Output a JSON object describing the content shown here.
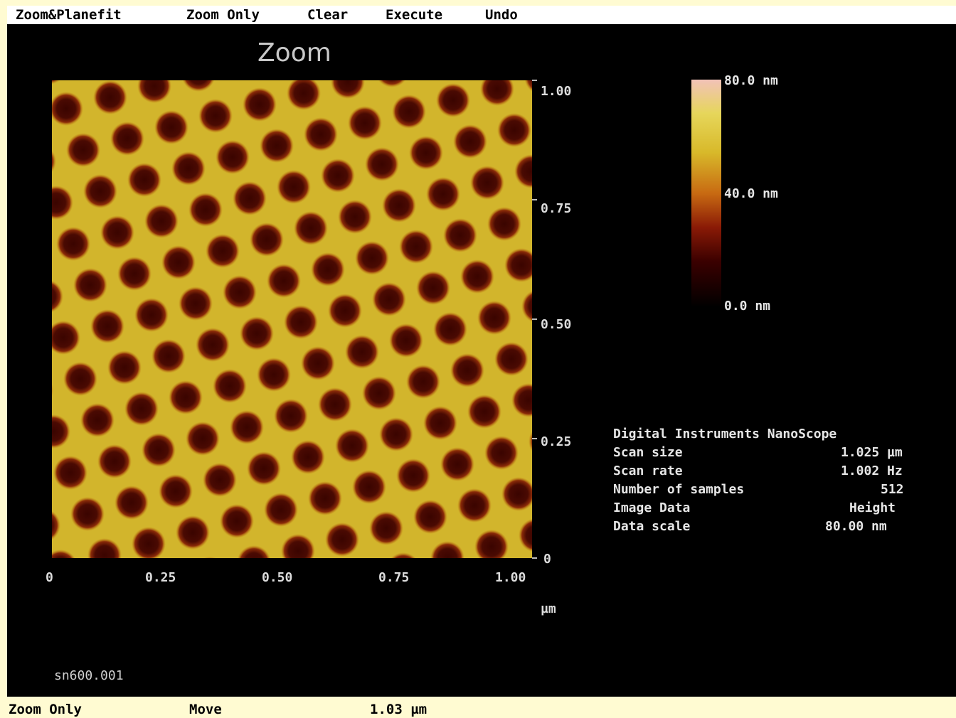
{
  "menu": {
    "items": [
      "Zoom&Planefit",
      "Zoom Only",
      "Clear",
      "Execute",
      "Undo"
    ]
  },
  "panel": {
    "title": "Zoom",
    "file_label": "sn600.001"
  },
  "chart_data": {
    "type": "heatmap",
    "title": "Zoom",
    "x_ticks": [
      "0",
      "0.25",
      "0.50",
      "0.75",
      "1.00"
    ],
    "y_ticks": [
      "1.00",
      "0.75",
      "0.50",
      "0.25",
      "0"
    ],
    "x_unit": "µm",
    "xlim": [
      0,
      1.0
    ],
    "ylim": [
      0,
      1.0
    ],
    "pattern": "hexagonal array of dark pores",
    "colorbar": {
      "labels": [
        "80.0 nm",
        "40.0 nm",
        "0.0 nm"
      ],
      "range": [
        0,
        80
      ],
      "unit": "nm",
      "colors": [
        "#000000",
        "#3a0000",
        "#8a1a06",
        "#c86a12",
        "#d8b92a",
        "#e6d65a",
        "#f2c2b8"
      ]
    }
  },
  "info": {
    "title": "Digital Instruments NanoScope",
    "rows": [
      {
        "label": "Scan size",
        "value": "1.025 µm"
      },
      {
        "label": "Scan rate",
        "value": "1.002 Hz"
      },
      {
        "label": "Number of samples",
        "value": "512"
      },
      {
        "label": "Image Data",
        "value": "Height"
      },
      {
        "label": "Data scale",
        "value": "80.00 nm"
      }
    ]
  },
  "status": {
    "mode": "Zoom Only",
    "action": "Move",
    "size": "1.03 µm"
  }
}
